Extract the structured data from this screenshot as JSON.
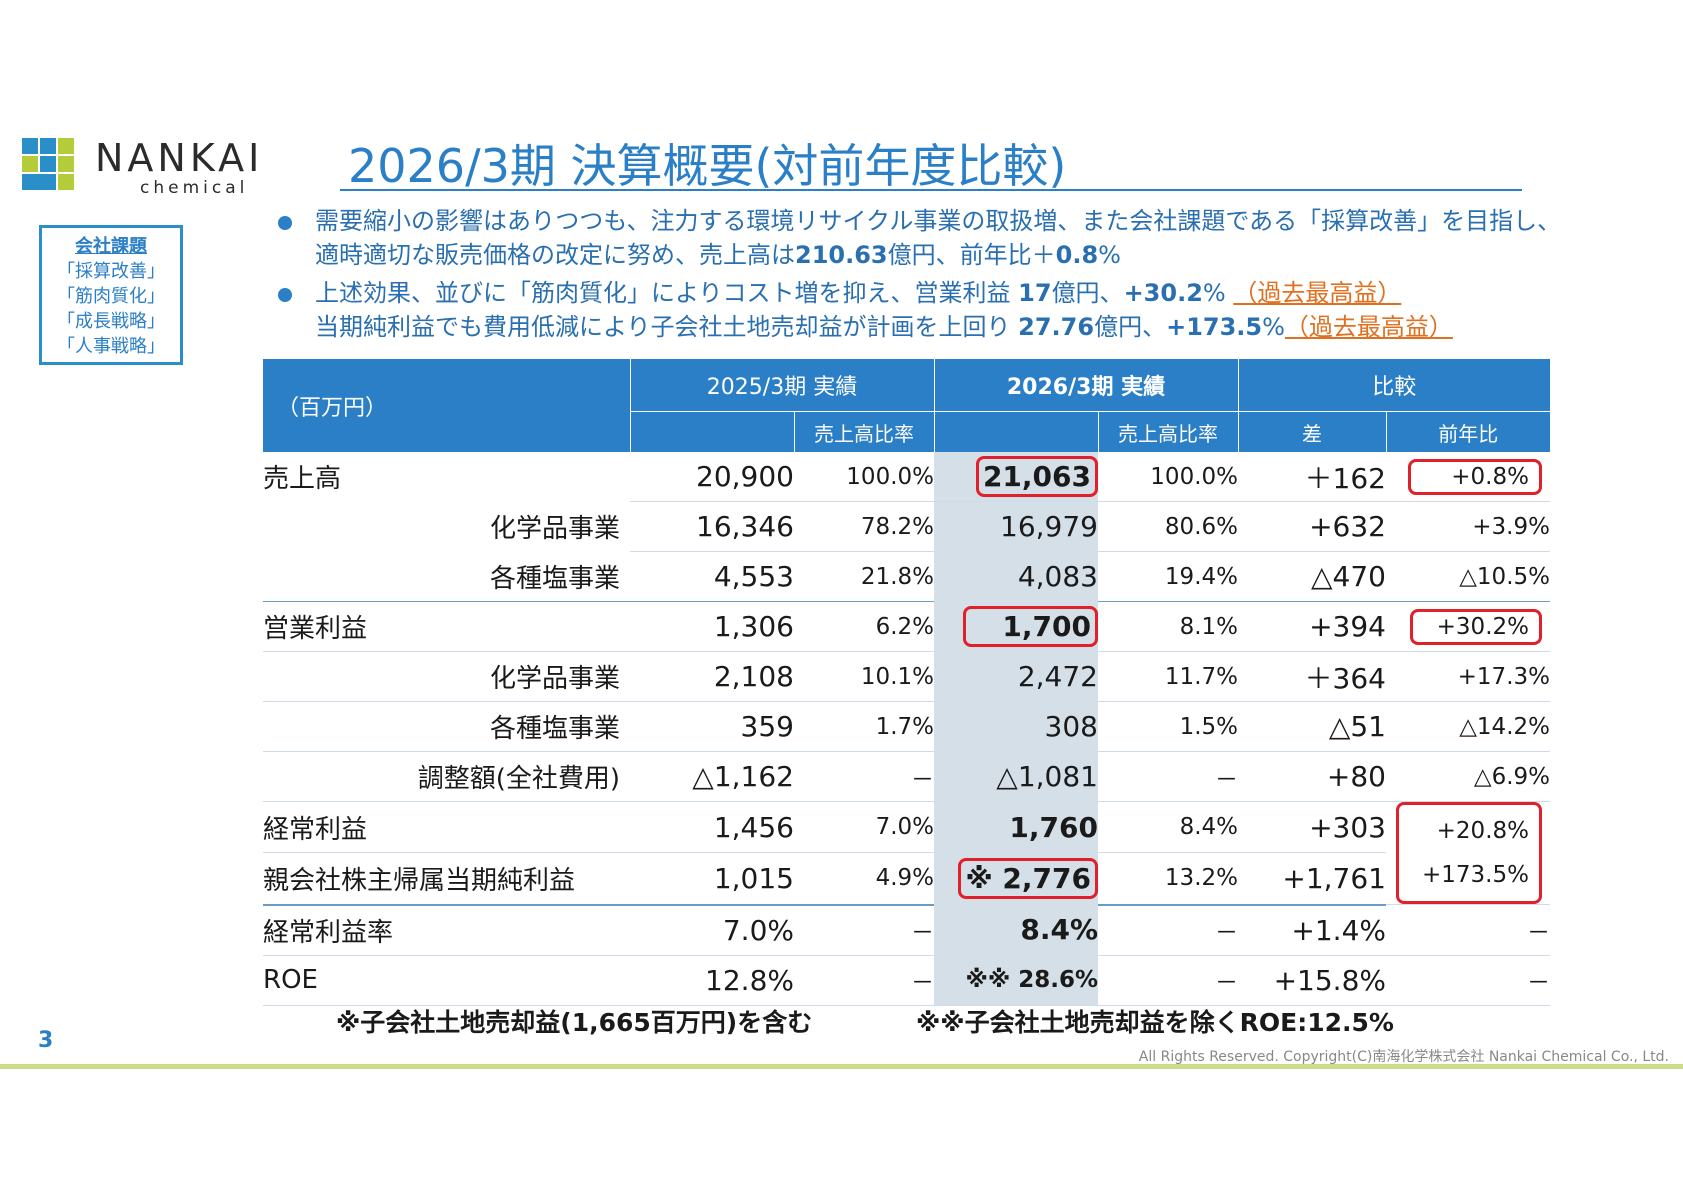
{
  "logo": {
    "word": "NANKAI",
    "sub": "chemical"
  },
  "title": "2026/3期 決算概要(対前年度比較)",
  "issues": {
    "heading": "会社課題",
    "items": [
      "「採算改善」",
      "「筋肉質化」",
      "「成長戦略」",
      "「人事戦略」"
    ]
  },
  "bullets": [
    {
      "line1": "需要縮小の影響はありつつも、注力する環境リサイクル事業の取扱増、また会社課題である「採算改善」を目指し、",
      "line2_pre": "適時適切な販売価格の改定に努め、売上高は",
      "line2_bold1": "210.63",
      "line2_mid": "億円、前年比＋",
      "line2_bold2": "0.8",
      "line2_post": "%"
    },
    {
      "line1_pre": "上述効果、並びに「筋肉質化」によりコスト増を抑え、営業利益 ",
      "line1_bold1": "17",
      "line1_mid": "億円、",
      "line1_bold2": "+30.2",
      "line1_post": "% ",
      "line1_orange": "（過去最高益）",
      "line2_pre": "当期純利益でも費用低減により子会社土地売却益が計画を上回り ",
      "line2_bold1": "27.76",
      "line2_mid": "億円、",
      "line2_bold2": "+173.5",
      "line2_post": "%",
      "line2_orange": "（過去最高益）"
    }
  ],
  "table": {
    "unit": "（百万円）",
    "col_prev": "2025/3期 実績",
    "col_curr": "2026/3期 実績",
    "col_cmp": "比較",
    "sub_ratio_prev": "売上高比率",
    "sub_ratio_curr": "売上高比率",
    "sub_diff": "差",
    "sub_yoy": "前年比",
    "rows": [
      {
        "label": "売上高",
        "prev": "20,900",
        "prev_r": "100.0%",
        "curr": "21,063",
        "curr_r": "100.0%",
        "diff": "＋162",
        "yoy": "+0.8%"
      },
      {
        "label": "化学品事業",
        "prev": "16,346",
        "prev_r": "78.2%",
        "curr": "16,979",
        "curr_r": "80.6%",
        "diff": "+632",
        "yoy": "+3.9%"
      },
      {
        "label": "各種塩事業",
        "prev": "4,553",
        "prev_r": "21.8%",
        "curr": "4,083",
        "curr_r": "19.4%",
        "diff": "△470",
        "yoy": "△10.5%"
      },
      {
        "label": "営業利益",
        "prev": "1,306",
        "prev_r": "6.2%",
        "curr": "1,700",
        "curr_r": "8.1%",
        "diff": "+394",
        "yoy": "+30.2%"
      },
      {
        "label": "化学品事業",
        "prev": "2,108",
        "prev_r": "10.1%",
        "curr": "2,472",
        "curr_r": "11.7%",
        "diff": "＋364",
        "yoy": "+17.3%"
      },
      {
        "label": "各種塩事業",
        "prev": "359",
        "prev_r": "1.7%",
        "curr": "308",
        "curr_r": "1.5%",
        "diff": "△51",
        "yoy": "△14.2%"
      },
      {
        "label": "調整額(全社費用)",
        "prev": "△1,162",
        "prev_r": "－",
        "curr": "△1,081",
        "curr_r": "－",
        "diff": "+80",
        "yoy": "△6.9%"
      },
      {
        "label": "経常利益",
        "prev": "1,456",
        "prev_r": "7.0%",
        "curr": "1,760",
        "curr_r": "8.4%",
        "diff": "+303",
        "yoy": "+20.8%"
      },
      {
        "label": "親会社株主帰属当期純利益",
        "prev": "1,015",
        "prev_r": "4.9%",
        "curr": "※ 2,776",
        "curr_r": "13.2%",
        "diff": "+1,761",
        "yoy": "+173.5%"
      },
      {
        "label": "経常利益率",
        "prev": "7.0%",
        "prev_r": "－",
        "curr": "8.4%",
        "curr_r": "－",
        "diff": "+1.4%",
        "yoy": "－"
      },
      {
        "label": "ROE",
        "prev": "12.8%",
        "prev_r": "－",
        "curr": "※※ 28.6%",
        "curr_r": "－",
        "diff": "+15.8%",
        "yoy": "－"
      }
    ]
  },
  "footnote1": "※子会社土地売却益(1,665百万円)を含む",
  "footnote2": "※※子会社土地売却益を除くROE:12.5%",
  "page_number": "3",
  "copyright": "All Rights Reserved. Copyright(C)南海化学株式会社 Nankai Chemical Co., Ltd."
}
